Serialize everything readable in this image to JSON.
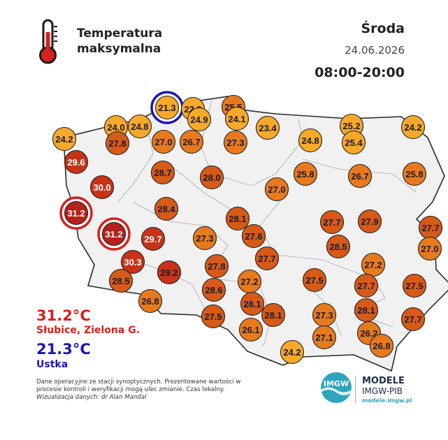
{
  "header": {
    "title_line1": "Temperatura",
    "title_line2": "maksymalna",
    "day": "Środa",
    "date": "24.06.2026",
    "hours": "08:00-20:00"
  },
  "summary": {
    "max_value": "31.2°C",
    "max_place": "Słubice, Zielona G.",
    "min_value": "21.3°C",
    "min_place": "Ustka"
  },
  "footnote": {
    "text": "Dane operacyjne ze stacji synoptycznych. Prezentowane wartości w procesie kontroli i weryfikacji mogą ulec zmianie. Czas lokalny.",
    "credit": "Wizualizacja danych: dr Alan Mandal"
  },
  "brand": {
    "logo_text": "IMGW",
    "title": "MODELE",
    "org": "IMGW-PIB",
    "url": "modele.imgw.pl"
  },
  "colors": {
    "max_highlight": "#d8201e",
    "min_highlight": "#1b17b6",
    "level_yellow": "#f8a92a",
    "level_orange": "#e87a1e",
    "level_dark_orange": "#d75a18",
    "level_red": "#c83318",
    "level_deep_red": "#b8201a"
  },
  "stations": [
    {
      "value": "21.3",
      "lon": 16.86,
      "lat": 54.58,
      "highlight": "min"
    },
    {
      "value": "22.9",
      "lon": 17.52,
      "lat": 54.56
    },
    {
      "value": "25.5",
      "lon": 18.55,
      "lat": 54.6
    },
    {
      "value": "24.0",
      "lon": 15.56,
      "lat": 54.18
    },
    {
      "value": "24.8",
      "lon": 16.16,
      "lat": 54.19
    },
    {
      "value": "24.9",
      "lon": 17.67,
      "lat": 54.33
    },
    {
      "value": "24.1",
      "lon": 18.64,
      "lat": 54.35
    },
    {
      "value": "23.4",
      "lon": 19.42,
      "lat": 54.16
    },
    {
      "value": "25.2",
      "lon": 21.55,
      "lat": 54.2
    },
    {
      "value": "24.2",
      "lon": 23.1,
      "lat": 54.18
    },
    {
      "value": "24.2",
      "lon": 14.25,
      "lat": 53.92
    },
    {
      "value": "27.8",
      "lon": 15.6,
      "lat": 53.84
    },
    {
      "value": "27.0",
      "lon": 16.76,
      "lat": 53.87
    },
    {
      "value": "26.7",
      "lon": 17.48,
      "lat": 53.87
    },
    {
      "value": "27.3",
      "lon": 18.6,
      "lat": 53.85
    },
    {
      "value": "24.8",
      "lon": 20.5,
      "lat": 53.9
    },
    {
      "value": "25.4",
      "lon": 21.6,
      "lat": 53.86
    },
    {
      "value": "29.6",
      "lon": 14.55,
      "lat": 53.44
    },
    {
      "value": "28.7",
      "lon": 16.74,
      "lat": 53.23
    },
    {
      "value": "28.0",
      "lon": 18.0,
      "lat": 53.13
    },
    {
      "value": "25.8",
      "lon": 20.38,
      "lat": 53.2
    },
    {
      "value": "26.7",
      "lon": 21.75,
      "lat": 53.15
    },
    {
      "value": "25.8",
      "lon": 23.15,
      "lat": 53.2
    },
    {
      "value": "30.0",
      "lon": 15.2,
      "lat": 52.92
    },
    {
      "value": "27.0",
      "lon": 19.65,
      "lat": 52.87
    },
    {
      "value": "31.2",
      "lon": 14.55,
      "lat": 52.38,
      "highlight": "max"
    },
    {
      "value": "28.4",
      "lon": 16.83,
      "lat": 52.47
    },
    {
      "value": "28.1",
      "lon": 18.65,
      "lat": 52.26
    },
    {
      "value": "27.7",
      "lon": 21.05,
      "lat": 52.19
    },
    {
      "value": "27.9",
      "lon": 22.0,
      "lat": 52.2
    },
    {
      "value": "27.7",
      "lon": 23.55,
      "lat": 52.08
    },
    {
      "value": "31.2",
      "lon": 15.5,
      "lat": 51.94,
      "highlight": "max"
    },
    {
      "value": "29.7",
      "lon": 16.5,
      "lat": 51.84
    },
    {
      "value": "27.3",
      "lon": 17.81,
      "lat": 51.85
    },
    {
      "value": "27.6",
      "lon": 19.05,
      "lat": 51.9
    },
    {
      "value": "28.5",
      "lon": 21.21,
      "lat": 51.68
    },
    {
      "value": "27.0",
      "lon": 23.53,
      "lat": 51.64
    },
    {
      "value": "30.3",
      "lon": 15.98,
      "lat": 51.36
    },
    {
      "value": "27.8",
      "lon": 18.12,
      "lat": 51.28
    },
    {
      "value": "27.7",
      "lon": 19.4,
      "lat": 51.43
    },
    {
      "value": "27.2",
      "lon": 22.1,
      "lat": 51.3
    },
    {
      "value": "29.2",
      "lon": 16.9,
      "lat": 51.14
    },
    {
      "value": "28.5",
      "lon": 15.68,
      "lat": 50.97
    },
    {
      "value": "27.2",
      "lon": 18.96,
      "lat": 50.95
    },
    {
      "value": "27.5",
      "lon": 20.6,
      "lat": 50.98
    },
    {
      "value": "27.7",
      "lon": 21.92,
      "lat": 50.87
    },
    {
      "value": "27.5",
      "lon": 23.15,
      "lat": 50.87
    },
    {
      "value": "28.6",
      "lon": 18.05,
      "lat": 50.78
    },
    {
      "value": "26.8",
      "lon": 16.43,
      "lat": 50.55
    },
    {
      "value": "28.1",
      "lon": 19.03,
      "lat": 50.48
    },
    {
      "value": "28.1",
      "lon": 21.92,
      "lat": 50.36
    },
    {
      "value": "27.5",
      "lon": 18.03,
      "lat": 50.22
    },
    {
      "value": "28.1",
      "lon": 19.55,
      "lat": 50.25
    },
    {
      "value": "27.3",
      "lon": 20.85,
      "lat": 50.26
    },
    {
      "value": "27.7",
      "lon": 23.1,
      "lat": 50.17
    },
    {
      "value": "26.1",
      "lon": 18.99,
      "lat": 49.95
    },
    {
      "value": "26.2",
      "lon": 21.99,
      "lat": 49.88
    },
    {
      "value": "27.1",
      "lon": 20.85,
      "lat": 49.79
    },
    {
      "value": "26.8",
      "lon": 22.3,
      "lat": 49.61
    },
    {
      "value": "24.2",
      "lon": 20.03,
      "lat": 49.48
    }
  ]
}
